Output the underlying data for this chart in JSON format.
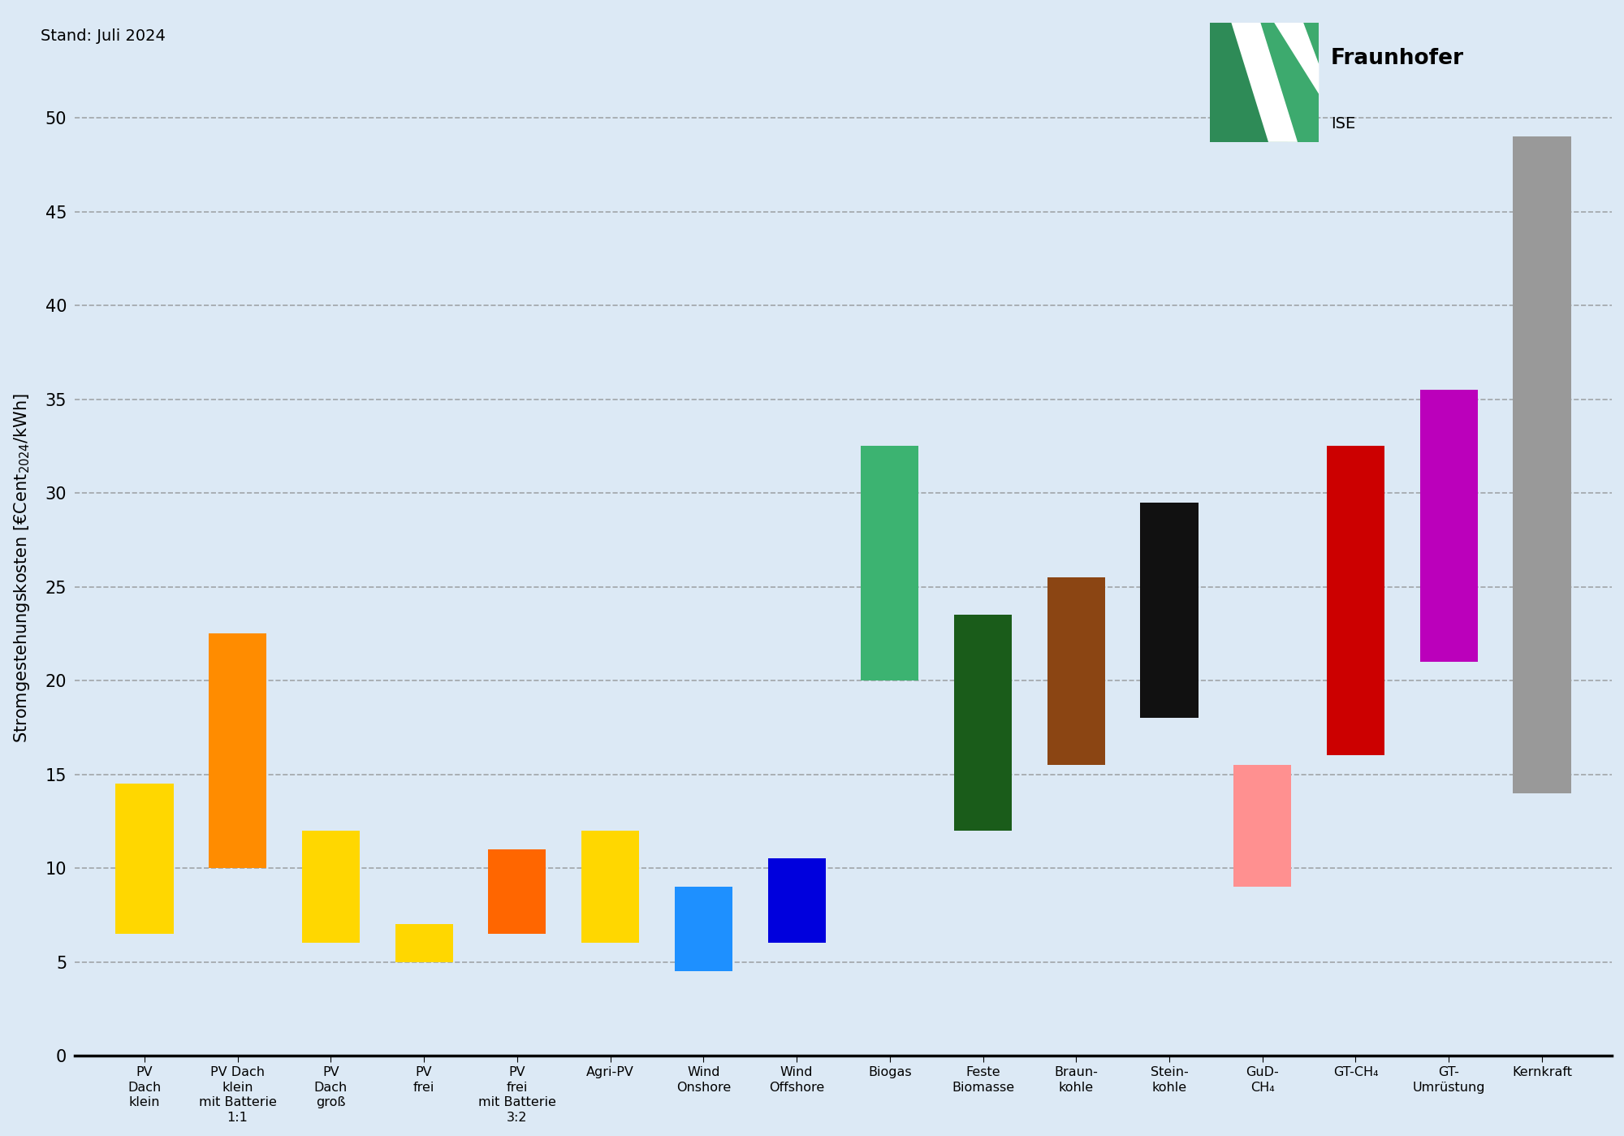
{
  "categories": [
    "PV\nDach\nklein",
    "PV Dach\nklein\nmit Batterie\n1:1",
    "PV\nDach\ngroß",
    "PV\nfrei",
    "PV\nfrei\nmit Batterie\n3:2",
    "Agri-PV",
    "Wind\nOnshore",
    "Wind\nOffshore",
    "Biogas",
    "Feste\nBiomasse",
    "Braun-\nkohle",
    "Stein-\nkohle",
    "GuD-\nCH₄",
    "GT-CH₄",
    "GT-\nUmrüstung",
    "Kernkraft"
  ],
  "bar_bottoms": [
    6.5,
    10.0,
    6.0,
    5.0,
    6.5,
    6.0,
    4.5,
    6.0,
    20.0,
    12.0,
    15.5,
    18.0,
    9.0,
    16.0,
    21.0,
    14.0
  ],
  "bar_tops": [
    14.5,
    22.5,
    12.0,
    7.0,
    11.0,
    12.0,
    9.0,
    10.5,
    32.5,
    23.5,
    25.5,
    29.5,
    15.5,
    32.5,
    35.5,
    49.0
  ],
  "bar_colors": [
    "#FFD700",
    "#FF8C00",
    "#FFD700",
    "#FFD700",
    "#FF6600",
    "#FFD700",
    "#1E90FF",
    "#0000DD",
    "#3CB371",
    "#1A5C1A",
    "#8B4513",
    "#111111",
    "#FF9090",
    "#CC0000",
    "#BB00BB",
    "#999999"
  ],
  "ylim": [
    0,
    52
  ],
  "yticks": [
    0,
    5,
    10,
    15,
    20,
    25,
    30,
    35,
    40,
    45,
    50
  ],
  "background_color": "#DCE9F5",
  "stamp": "Stand: Juli 2024",
  "logo_color1": "#2E8B57",
  "logo_color2": "#3DAA6E"
}
